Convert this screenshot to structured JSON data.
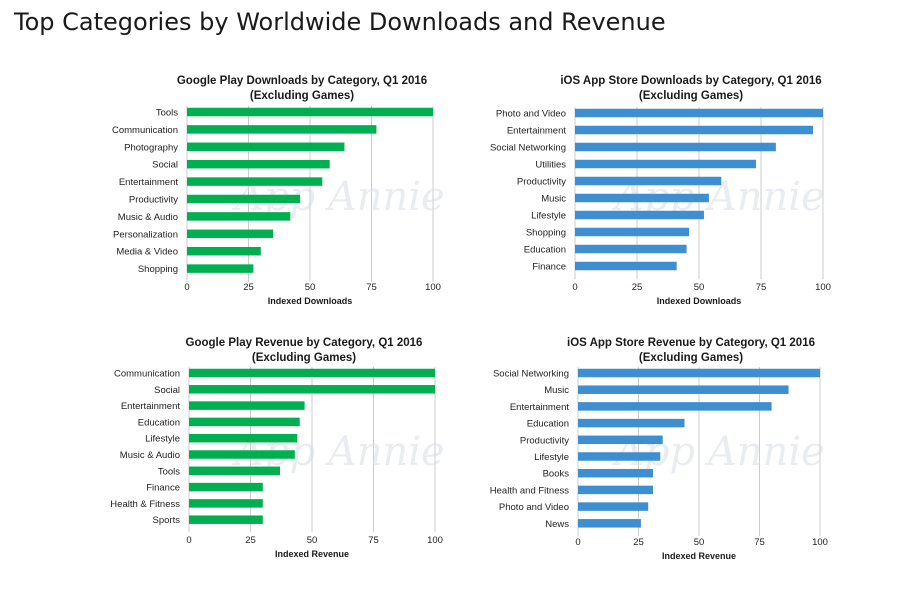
{
  "page": {
    "title": "Top Categories by Worldwide Downloads and Revenue",
    "watermark": "App Annie"
  },
  "colors": {
    "google_play": "#00b050",
    "ios": "#3e8fd1"
  },
  "chart_data": [
    {
      "type": "bar",
      "orientation": "horizontal",
      "title": "Google Play Downloads by Category, Q1 2016",
      "subtitle": "(Excluding Games)",
      "xlabel": "Indexed Downloads",
      "xlim": [
        0,
        100
      ],
      "xticks": [
        0,
        25,
        50,
        75,
        100
      ],
      "color_key": "google_play",
      "categories": [
        "Tools",
        "Communication",
        "Photography",
        "Social",
        "Entertainment",
        "Productivity",
        "Music & Audio",
        "Personalization",
        "Media & Video",
        "Shopping"
      ],
      "values": [
        100,
        77,
        64,
        58,
        55,
        46,
        42,
        35,
        30,
        27
      ]
    },
    {
      "type": "bar",
      "orientation": "horizontal",
      "title": "iOS App Store Downloads by Category, Q1 2016",
      "subtitle": "(Excluding Games)",
      "xlabel": "Indexed Downloads",
      "xlim": [
        0,
        100
      ],
      "xticks": [
        0,
        25,
        50,
        75,
        100
      ],
      "color_key": "ios",
      "categories": [
        "Photo and Video",
        "Entertainment",
        "Social Networking",
        "Utilities",
        "Productivity",
        "Music",
        "Lifestyle",
        "Shopping",
        "Education",
        "Finance"
      ],
      "values": [
        100,
        96,
        81,
        73,
        59,
        54,
        52,
        46,
        45,
        41
      ]
    },
    {
      "type": "bar",
      "orientation": "horizontal",
      "title": "Google Play Revenue by Category, Q1 2016",
      "subtitle": "(Excluding Games)",
      "xlabel": "Indexed Revenue",
      "xlim": [
        0,
        100
      ],
      "xticks": [
        0,
        25,
        50,
        75,
        100
      ],
      "color_key": "google_play",
      "categories": [
        "Communication",
        "Social",
        "Entertainment",
        "Education",
        "Lifestyle",
        "Music & Audio",
        "Tools",
        "Finance",
        "Health & Fitness",
        "Sports"
      ],
      "values": [
        100,
        100,
        47,
        45,
        44,
        43,
        37,
        30,
        30,
        30
      ]
    },
    {
      "type": "bar",
      "orientation": "horizontal",
      "title": "iOS App Store Revenue by Category, Q1 2016",
      "subtitle": "(Excluding Games)",
      "xlabel": "Indexed Revenue",
      "xlim": [
        0,
        100
      ],
      "xticks": [
        0,
        25,
        50,
        75,
        100
      ],
      "color_key": "ios",
      "categories": [
        "Social Networking",
        "Music",
        "Entertainment",
        "Education",
        "Productivity",
        "Lifestyle",
        "Books",
        "Health and Fitness",
        "Photo and Video",
        "News"
      ],
      "values": [
        100,
        87,
        80,
        44,
        35,
        34,
        31,
        31,
        29,
        26
      ]
    }
  ]
}
